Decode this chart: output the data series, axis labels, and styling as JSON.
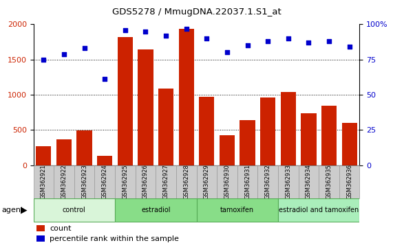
{
  "title": "GDS5278 / MmugDNA.22037.1.S1_at",
  "samples": [
    "GSM362921",
    "GSM362922",
    "GSM362923",
    "GSM362924",
    "GSM362925",
    "GSM362926",
    "GSM362927",
    "GSM362928",
    "GSM362929",
    "GSM362930",
    "GSM362931",
    "GSM362932",
    "GSM362933",
    "GSM362934",
    "GSM362935",
    "GSM362936"
  ],
  "counts": [
    270,
    370,
    490,
    130,
    1820,
    1640,
    1090,
    1940,
    970,
    430,
    640,
    960,
    1040,
    740,
    840,
    600
  ],
  "percentiles": [
    75,
    79,
    83,
    61,
    96,
    95,
    92,
    97,
    90,
    80,
    85,
    88,
    90,
    87,
    88,
    84
  ],
  "groups": [
    {
      "label": "control",
      "start": 0,
      "end": 4,
      "color": "#d9f5d9"
    },
    {
      "label": "estradiol",
      "start": 4,
      "end": 8,
      "color": "#88dd88"
    },
    {
      "label": "tamoxifen",
      "start": 8,
      "end": 12,
      "color": "#88dd88"
    },
    {
      "label": "estradiol and tamoxifen",
      "start": 12,
      "end": 16,
      "color": "#aaeebb"
    }
  ],
  "bar_color": "#cc2200",
  "dot_color": "#0000cc",
  "ylim_left": [
    0,
    2000
  ],
  "ylim_right": [
    0,
    100
  ],
  "yticks_left": [
    0,
    500,
    1000,
    1500,
    2000
  ],
  "yticks_right": [
    0,
    25,
    50,
    75,
    100
  ],
  "grid_color": "#000000",
  "bg_color": "#ffffff",
  "legend_count_color": "#cc2200",
  "legend_dot_color": "#0000cc",
  "tick_label_color_left": "#cc2200",
  "tick_label_color_right": "#0000cc",
  "sample_box_color": "#cccccc",
  "sample_box_edge": "#999999",
  "group_edge_color": "#55aa55"
}
